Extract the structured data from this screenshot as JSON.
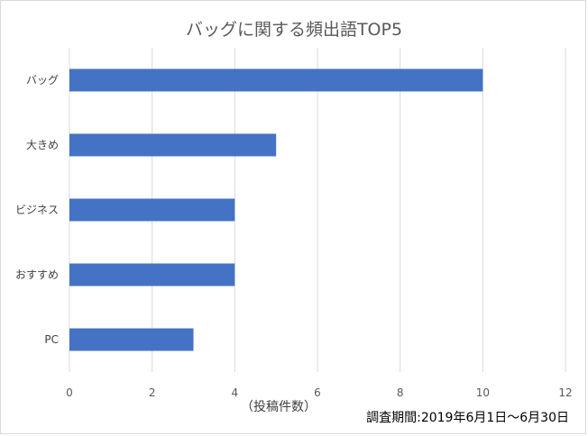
{
  "chart_data": {
    "type": "bar",
    "orientation": "horizontal",
    "title": "バッグに関する頻出語TOP5",
    "categories": [
      "バッグ",
      "大きめ",
      "ビジネス",
      "おすすめ",
      "PC"
    ],
    "values": [
      10,
      5,
      4,
      4,
      3
    ],
    "xlabel": "（投稿件数）",
    "ylabel": "",
    "xlim": [
      0,
      12
    ],
    "xticks": [
      0,
      2,
      4,
      6,
      8,
      10,
      12
    ],
    "grid": true,
    "legend": "none",
    "bar_color": "#4472c4"
  },
  "footnote": "調査期間:2019年6月1日～6月30日"
}
